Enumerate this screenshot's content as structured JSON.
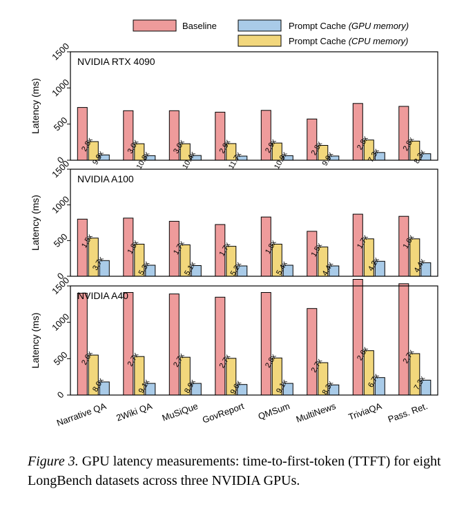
{
  "legend": {
    "baseline": "Baseline",
    "gpu_prefix": "Prompt Cache ",
    "gpu_italic": "(GPU memory)",
    "cpu_prefix": "Prompt Cache ",
    "cpu_italic": "(CPU memory)"
  },
  "colors": {
    "baseline": "#ee9b9b",
    "cpu": "#f2d77c",
    "gpu": "#a9cbe8",
    "edge": "#000000"
  },
  "caption": {
    "label": "Figure 3.",
    "text": " GPU latency measurements: time-to-first-token (TTFT) for eight LongBench datasets across three NVIDIA GPUs."
  },
  "chart_data": [
    {
      "type": "bar",
      "title": "NVIDIA RTX 4090",
      "ylabel": "Latency (ms)",
      "ylim": [
        0,
        1500
      ],
      "yticks": [
        0,
        500,
        1000,
        1500
      ],
      "categories": [
        "Narrative QA",
        "2Wiki QA",
        "MuSiQue",
        "GovReport",
        "QMSum",
        "MultiNews",
        "TriviaQA",
        "Pass. Ret."
      ],
      "series": [
        {
          "name": "Baseline",
          "values": [
            730,
            685,
            685,
            665,
            690,
            570,
            785,
            745
          ]
        },
        {
          "name": "Prompt Cache (CPU memory)",
          "values": [
            258,
            228,
            228,
            230,
            238,
            205,
            280,
            265
          ]
        },
        {
          "name": "Prompt Cache (GPU memory)",
          "values": [
            74,
            63,
            66,
            57,
            63,
            58,
            107,
            90
          ]
        }
      ],
      "annotations": {
        "cpu": [
          "2.8x",
          "3.0x",
          "3.0x",
          "2.9x",
          "2.9x",
          "2.8x",
          "2.8x",
          "2.8x"
        ],
        "gpu": [
          "9.9x",
          "10.8x",
          "10.4x",
          "11.7x",
          "10.9x",
          "9.9x",
          "7.3x",
          "8.3x"
        ]
      }
    },
    {
      "type": "bar",
      "title": "NVIDIA A100",
      "ylabel": "Latency (ms)",
      "ylim": [
        0,
        1500
      ],
      "yticks": [
        0,
        500,
        1000,
        1500
      ],
      "categories": [
        "Narrative QA",
        "2Wiki QA",
        "MuSiQue",
        "GovReport",
        "QMSum",
        "MultiNews",
        "TriviaQA",
        "Pass. Ret."
      ],
      "series": [
        {
          "name": "Baseline",
          "values": [
            800,
            815,
            770,
            725,
            830,
            630,
            870,
            840
          ]
        },
        {
          "name": "Prompt Cache (CPU memory)",
          "values": [
            535,
            450,
            440,
            420,
            450,
            410,
            525,
            525
          ]
        },
        {
          "name": "Prompt Cache (GPU memory)",
          "values": [
            220,
            155,
            150,
            145,
            155,
            145,
            210,
            190
          ]
        }
      ],
      "annotations": {
        "cpu": [
          "1.5x",
          "1.8x",
          "1.7x",
          "1.7x",
          "1.8x",
          "1.5x",
          "1.7x",
          "1.6x"
        ],
        "gpu": [
          "3.7x",
          "5.3x",
          "5.1x",
          "5.2x",
          "5.4x",
          "4.4x",
          "4.2x",
          "4.4x"
        ]
      }
    },
    {
      "type": "bar",
      "title": "NVIDIA A40",
      "ylabel": "Latency (ms)",
      "ylim": [
        0,
        1500
      ],
      "yticks": [
        0,
        500,
        1000,
        1500
      ],
      "categories": [
        "Narrative QA",
        "2Wiki QA",
        "MuSiQue",
        "GovReport",
        "QMSum",
        "MultiNews",
        "TriviaQA",
        "Pass. Ret."
      ],
      "series": [
        {
          "name": "Baseline",
          "values": [
            1400,
            1410,
            1390,
            1345,
            1410,
            1190,
            1590,
            1530
          ]
        },
        {
          "name": "Prompt Cache (CPU memory)",
          "values": [
            550,
            530,
            520,
            505,
            510,
            445,
            610,
            570
          ]
        },
        {
          "name": "Prompt Cache (GPU memory)",
          "values": [
            180,
            160,
            160,
            145,
            160,
            140,
            240,
            205
          ]
        }
      ],
      "annotations": {
        "cpu": [
          "2.6x",
          "2.7x",
          "2.7x",
          "2.7x",
          "2.8x",
          "2.7x",
          "2.6x",
          "2.7x"
        ],
        "gpu": [
          "8.0x",
          "9.1x",
          "8.9x",
          "9.6x",
          "9.1x",
          "8.3x",
          "6.7x",
          "7.3x"
        ]
      }
    }
  ]
}
